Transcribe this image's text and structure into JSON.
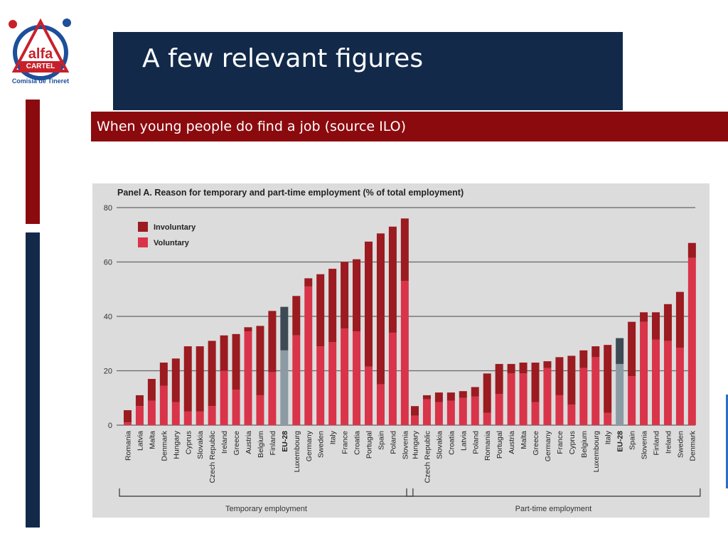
{
  "slide": {
    "title": "A few relevant figures",
    "subtitle": "When young people do find a job (source ILO)"
  },
  "logo": {
    "text_main": "alfa",
    "text_sub": "CARTEL",
    "text_ring": "Comisia de Tineret",
    "icon": "alfa-cartel-logo-icon"
  },
  "colors": {
    "title_bg": "#12294a",
    "accent_red": "#8b0a0e",
    "involuntary": "#9b1b20",
    "voluntary": "#d9344a",
    "eu_involuntary": "#3d4a54",
    "eu_voluntary": "#8c9aa3",
    "chart_bg": "#dcdcdc"
  },
  "chart_data": {
    "type": "bar",
    "stacked": true,
    "title": "Panel A.  Reason for temporary and part-time employment (% of total employment)",
    "ylim": [
      0,
      80
    ],
    "yticks": [
      0,
      20,
      40,
      60,
      80
    ],
    "grid": true,
    "legend": {
      "position": "top-left",
      "items": [
        "Involuntary",
        "Voluntary"
      ]
    },
    "groups": [
      {
        "label": "Temporary employment",
        "categories": [
          "Romania",
          "Latvia",
          "Malta",
          "Denmark",
          "Hungary",
          "Cyprus",
          "Slovakia",
          "Czech Republic",
          "Ireland",
          "Greece",
          "Austria",
          "Belgium",
          "Finland",
          "EU-28",
          "Luxembourg",
          "Germany",
          "Sweden",
          "Italy",
          "France",
          "Croatia",
          "Portugal",
          "Spain",
          "Poland",
          "Slovenia"
        ],
        "voluntary": [
          1,
          7,
          9,
          14.5,
          8.5,
          5,
          5,
          7,
          20,
          13,
          34.5,
          11,
          19.5,
          27.5,
          33,
          51,
          29,
          30.5,
          35.5,
          34.5,
          21.5,
          15,
          34,
          53
        ],
        "involuntary": [
          4.5,
          4,
          8,
          8.5,
          16,
          24,
          24,
          24,
          13,
          20.5,
          1.5,
          25.5,
          22.5,
          16,
          14.5,
          3,
          26.5,
          27,
          24.5,
          26.5,
          46,
          55.5,
          39,
          23
        ],
        "highlight": "EU-28"
      },
      {
        "label": "Part-time employment",
        "categories": [
          "Hungary",
          "Czech Republic",
          "Slovakia",
          "Croatia",
          "Latvia",
          "Poland",
          "Romania",
          "Portugal",
          "Austria",
          "Malta",
          "Greece",
          "Germany",
          "France",
          "Cyprus",
          "Belgium",
          "Luxembourg",
          "Italy",
          "EU-28",
          "Spain",
          "Slovenia",
          "Finland",
          "Ireland",
          "Sweden",
          "Denmark"
        ],
        "voluntary": [
          3.5,
          9.5,
          8.5,
          9,
          10,
          10.5,
          4.5,
          11.5,
          19,
          19,
          8.5,
          21,
          11,
          7.5,
          21,
          25,
          4.5,
          22.5,
          18,
          38,
          31.5,
          31,
          28.5,
          61.5
        ],
        "involuntary": [
          3.5,
          1.5,
          3.5,
          3,
          2.5,
          3.5,
          14.5,
          11,
          3.5,
          4,
          14.5,
          2.5,
          14,
          18,
          6.5,
          4,
          25,
          9.5,
          20,
          3.5,
          10,
          13.5,
          20.5,
          5.5
        ],
        "highlight": "EU-28"
      }
    ]
  }
}
